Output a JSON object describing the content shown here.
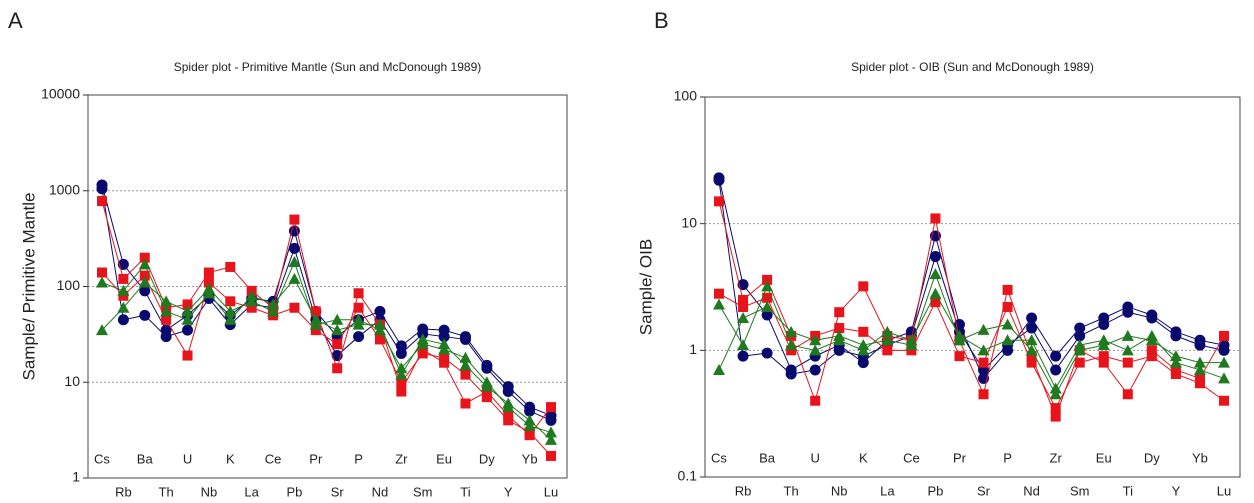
{
  "chart_data": [
    {
      "type": "line",
      "panel": "A",
      "title": "Spider plot - Primitive Mantle (Sun  and  McDonough 1989)",
      "ylabel": "Sample/ Primitive Mantle",
      "log_y": true,
      "grid": true,
      "ylim": [
        1,
        10000
      ],
      "yticks": [
        1,
        10,
        100,
        1000,
        10000
      ],
      "categories": [
        "Cs",
        "Rb",
        "Ba",
        "Th",
        "U",
        "Nb",
        "K",
        "La",
        "Ce",
        "Pb",
        "Pr",
        "Sr",
        "P",
        "Nd",
        "Zr",
        "Sm",
        "Eu",
        "Ti",
        "Dy",
        "Y",
        "Yb",
        "Lu"
      ],
      "series": [
        {
          "color": "#0a0a6e",
          "marker": "circle",
          "values": [
            1150,
            170,
            90,
            35,
            50,
            80,
            50,
            75,
            70,
            380,
            55,
            30,
            45,
            55,
            24,
            36,
            35,
            30,
            15,
            9,
            5.5,
            4.5
          ]
        },
        {
          "color": "#0a0a6e",
          "marker": "circle",
          "values": [
            1050,
            45,
            50,
            30,
            35,
            75,
            40,
            65,
            60,
            250,
            45,
            19,
            30,
            45,
            20,
            32,
            30,
            28,
            14,
            8,
            5,
            4
          ]
        },
        {
          "color": "#e8141c",
          "marker": "square",
          "values": [
            780,
            120,
            200,
            60,
            65,
            140,
            160,
            90,
            60,
            500,
            55,
            14,
            85,
            40,
            8,
            22,
            16,
            6,
            8,
            4.5,
            2.8,
            5.5
          ]
        },
        {
          "color": "#e8141c",
          "marker": "square",
          "values": [
            140,
            80,
            130,
            45,
            19,
            110,
            70,
            60,
            50,
            60,
            35,
            25,
            60,
            28,
            10,
            20,
            18,
            12,
            7,
            4,
            3,
            1.7
          ]
        },
        {
          "color": "#1f7a1f",
          "marker": "triangle",
          "values": [
            35,
            60,
            110,
            70,
            55,
            95,
            55,
            70,
            55,
            180,
            40,
            45,
            45,
            35,
            14,
            25,
            22,
            18,
            10,
            5.5,
            3.5,
            3
          ]
        },
        {
          "color": "#1f7a1f",
          "marker": "triangle",
          "values": [
            110,
            90,
            170,
            55,
            45,
            85,
            45,
            80,
            65,
            120,
            45,
            35,
            40,
            40,
            12,
            28,
            25,
            15,
            9,
            6,
            4,
            2.5
          ]
        }
      ]
    },
    {
      "type": "line",
      "panel": "B",
      "title": "Spider plot - OIB (Sun  and  McDonough 1989)",
      "ylabel": "Sample/ OIB",
      "log_y": true,
      "grid": true,
      "ylim": [
        0.1,
        100
      ],
      "yticks": [
        0.1,
        1,
        10,
        100
      ],
      "categories": [
        "Cs",
        "Rb",
        "Ba",
        "Th",
        "U",
        "Nb",
        "K",
        "La",
        "Ce",
        "Pb",
        "Pr",
        "Sr",
        "P",
        "Nd",
        "Zr",
        "Sm",
        "Eu",
        "Ti",
        "Dy",
        "Y",
        "Yb",
        "Lu"
      ],
      "series": [
        {
          "color": "#0a0a6e",
          "marker": "circle",
          "values": [
            23,
            3.3,
            1.9,
            0.7,
            0.9,
            1.1,
            0.8,
            1.2,
            1.4,
            8,
            1.6,
            0.6,
            1.0,
            1.8,
            0.9,
            1.5,
            1.8,
            2.2,
            1.9,
            1.4,
            1.2,
            1.1
          ]
        },
        {
          "color": "#0a0a6e",
          "marker": "circle",
          "values": [
            22,
            0.9,
            0.95,
            0.65,
            0.7,
            1.0,
            0.9,
            1.1,
            1.3,
            5.5,
            1.4,
            0.7,
            1.1,
            1.5,
            0.7,
            1.3,
            1.6,
            2.0,
            1.8,
            1.3,
            1.1,
            1.0
          ]
        },
        {
          "color": "#e8141c",
          "marker": "square",
          "values": [
            15,
            2.5,
            3.6,
            1.3,
            0.4,
            2.0,
            3.2,
            1.3,
            1.2,
            11,
            1.2,
            0.45,
            3.0,
            0.9,
            0.3,
            1.0,
            0.8,
            0.45,
            1.0,
            0.7,
            0.6,
            1.3
          ]
        },
        {
          "color": "#e8141c",
          "marker": "square",
          "values": [
            2.8,
            2.2,
            2.6,
            1.0,
            1.3,
            1.5,
            1.4,
            1.0,
            1.0,
            2.4,
            0.9,
            0.8,
            2.2,
            0.8,
            0.35,
            0.8,
            0.9,
            0.8,
            0.9,
            0.65,
            0.55,
            0.4
          ]
        },
        {
          "color": "#1f7a1f",
          "marker": "triangle",
          "values": [
            0.7,
            1.8,
            2.2,
            1.4,
            1.2,
            1.3,
            1.1,
            1.2,
            1.1,
            4,
            1.2,
            1.45,
            1.6,
            1.0,
            0.45,
            1.0,
            1.1,
            1.3,
            1.2,
            0.9,
            0.8,
            0.8
          ]
        },
        {
          "color": "#1f7a1f",
          "marker": "triangle",
          "values": [
            2.3,
            1.1,
            3.2,
            1.1,
            1.0,
            1.2,
            1.0,
            1.4,
            1.2,
            2.8,
            1.3,
            1.0,
            1.2,
            1.2,
            0.5,
            1.1,
            1.2,
            1.0,
            1.3,
            0.8,
            0.7,
            0.6
          ]
        }
      ]
    }
  ]
}
